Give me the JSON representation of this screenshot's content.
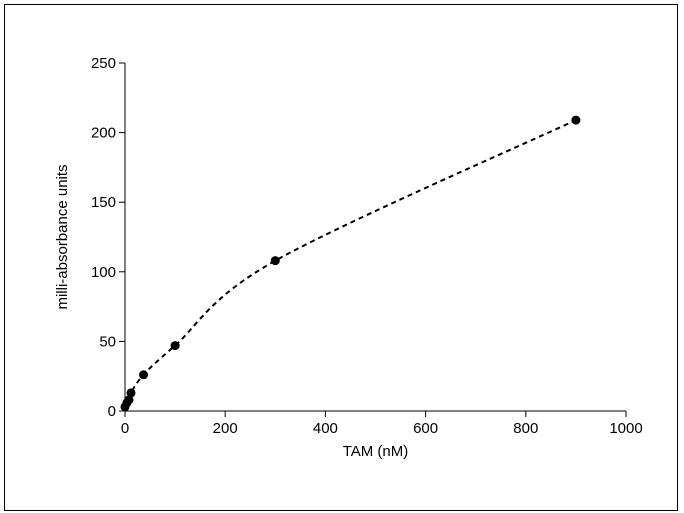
{
  "chart_data": {
    "type": "scatter",
    "title": "",
    "xlabel": "TAM (nM)",
    "ylabel": "milli-absorbance units",
    "xlim": [
      0,
      1000
    ],
    "ylim": [
      0,
      250
    ],
    "x_ticks": [
      "0",
      "200",
      "400",
      "600",
      "800",
      "1000"
    ],
    "y_ticks": [
      "0",
      "50",
      "100",
      "150",
      "200",
      "250"
    ],
    "grid": false,
    "legend": "none",
    "series": [
      {
        "points": [
          {
            "x": 0,
            "y": 3
          },
          {
            "x": 4,
            "y": 6
          },
          {
            "x": 8,
            "y": 8
          },
          {
            "x": 12,
            "y": 13
          },
          {
            "x": 37,
            "y": 26
          },
          {
            "x": 100,
            "y": 47
          },
          {
            "x": 300,
            "y": 108
          },
          {
            "x": 900,
            "y": 209
          }
        ],
        "marker_color": "#000000",
        "fit_line": "dashed"
      }
    ]
  }
}
